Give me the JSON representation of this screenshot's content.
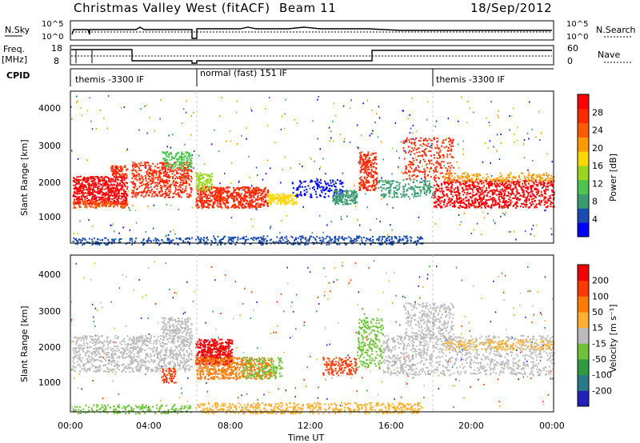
{
  "header": {
    "title": "Christmas Valley West (fitACF)",
    "beam": "Beam 11",
    "date": "18/Sep/2012"
  },
  "nsky_panel": {
    "left_label": "N.Sky",
    "right_label": "N.Search",
    "left_ticks": [
      "10^5",
      "10^0"
    ],
    "right_ticks": [
      "10^5",
      "10^0"
    ]
  },
  "freq_panel": {
    "left_label_1": "Freq.",
    "left_label_2": "[MHz]",
    "right_label": "Nave",
    "left_ticks": [
      "18",
      "8"
    ],
    "right_ticks": [
      "60",
      "0"
    ]
  },
  "cpid_panel": {
    "label": "CPID",
    "modes": [
      "themis -3300 IF",
      "normal (fast) 151 IF",
      "themis -3300 IF"
    ]
  },
  "power_panel": {
    "ylabel": "Slant Range [km]",
    "yticks": [
      "4000",
      "3000",
      "2000",
      "1000"
    ],
    "colorbar_label": "Power [dB]",
    "colorbar_ticks": [
      "28",
      "24",
      "20",
      "16",
      "12",
      "8",
      "4"
    ],
    "colorbar_colors": [
      "#0000ff",
      "#1a4cb0",
      "#3a9a70",
      "#4ec34e",
      "#9bd61e",
      "#ffd800",
      "#ff9a00",
      "#ff5a00",
      "#ff2a00",
      "#ff0000"
    ]
  },
  "velocity_panel": {
    "ylabel": "Slant Range [km]",
    "yticks": [
      "4000",
      "3000",
      "2000",
      "1000"
    ],
    "colorbar_label": "Velocity [m s⁻¹]",
    "colorbar_ticks": [
      "200",
      "100",
      "50",
      "15",
      "-15",
      "-50",
      "-100",
      "-200"
    ],
    "colorbar_colors": [
      "#2222bb",
      "#2a7a8a",
      "#2f9a3f",
      "#6fc13a",
      "#bbbbbb",
      "#ffb030",
      "#ff7a00",
      "#ff3a00",
      "#ee0000"
    ]
  },
  "xaxis": {
    "label": "Time UT",
    "ticks": [
      "00:00",
      "04:00",
      "08:00",
      "12:00",
      "16:00",
      "20:00",
      "00:00"
    ]
  },
  "chart_data": {
    "type": "heatmap",
    "x_range_hours": [
      0,
      24
    ],
    "y_range_km": [
      180,
      4500
    ],
    "cpid_segments": [
      {
        "start_hour": 0,
        "end_hour": 6.1,
        "mode": "themis -3300 IF"
      },
      {
        "start_hour": 6.1,
        "end_hour": 18,
        "mode": "normal (fast) 151 IF"
      },
      {
        "start_hour": 18,
        "end_hour": 24,
        "mode": "themis -3300 IF"
      }
    ],
    "power_scale_db": [
      0,
      30
    ],
    "velocity_scale_ms": [
      -200,
      200
    ]
  }
}
